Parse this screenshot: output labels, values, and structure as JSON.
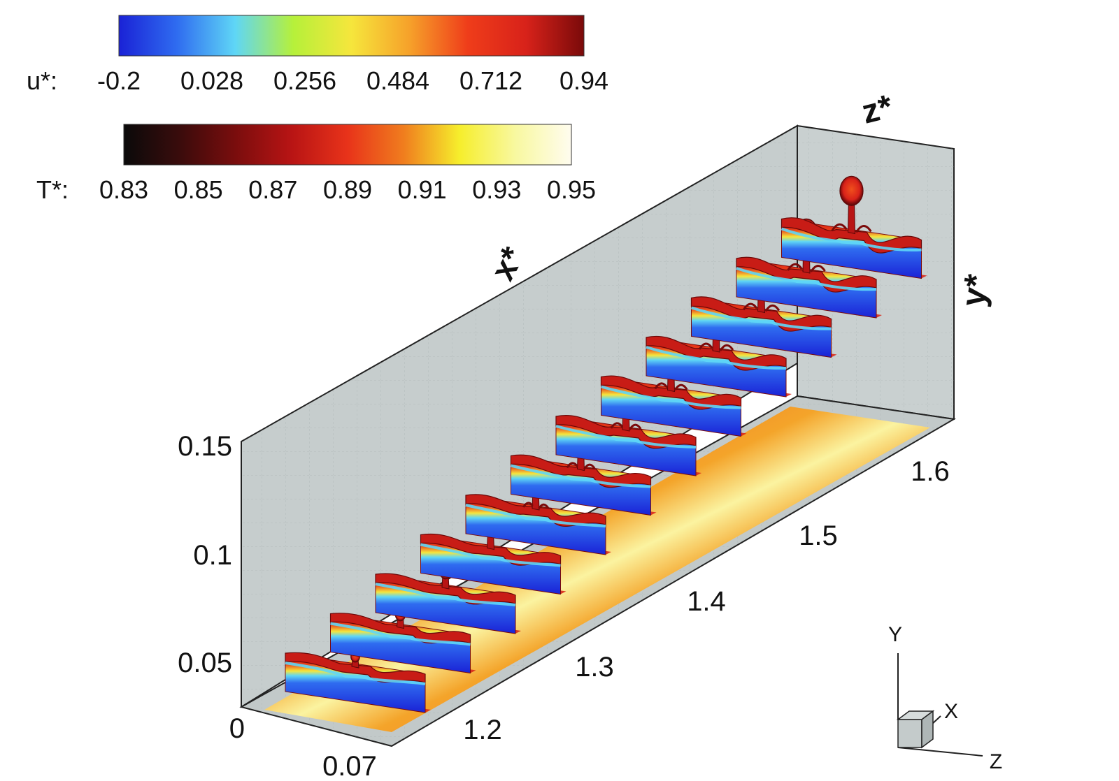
{
  "colorbar_u": {
    "label": "u*:",
    "ticks": [
      "-0.2",
      "0.028",
      "0.256",
      "0.484",
      "0.712",
      "0.94"
    ],
    "colors": [
      "#1a22d6",
      "#2f6cf0",
      "#5fd6f6",
      "#b6f03a",
      "#f6e63c",
      "#f6a12a",
      "#ef3d1a",
      "#d8221a",
      "#7a0a0a"
    ]
  },
  "colorbar_t": {
    "label": "T*:",
    "ticks": [
      "0.83",
      "0.85",
      "0.87",
      "0.89",
      "0.91",
      "0.93",
      "0.95"
    ],
    "colors": [
      "#0a0a0a",
      "#3a0c0c",
      "#7a0d0d",
      "#b81414",
      "#e8331a",
      "#f07d1e",
      "#f6ee2c",
      "#f8f8a0",
      "#fffcef"
    ]
  },
  "axes": {
    "x_title": "x*",
    "y_title": "y*",
    "z_title": "z*",
    "y_ticks": [
      "0.15",
      "0.1",
      "0.05",
      "0"
    ],
    "z_ticks": [
      "0.07"
    ],
    "x_ticks": [
      "1.2",
      "1.3",
      "1.4",
      "1.5",
      "1.6"
    ]
  },
  "triad": {
    "x": "X",
    "y": "Y",
    "z": "Z"
  },
  "slices": {
    "count": 12,
    "plume_growth": [
      0.05,
      0.12,
      0.22,
      0.32,
      0.42,
      0.52,
      0.6,
      0.68,
      0.75,
      0.82,
      0.88,
      0.95
    ]
  }
}
